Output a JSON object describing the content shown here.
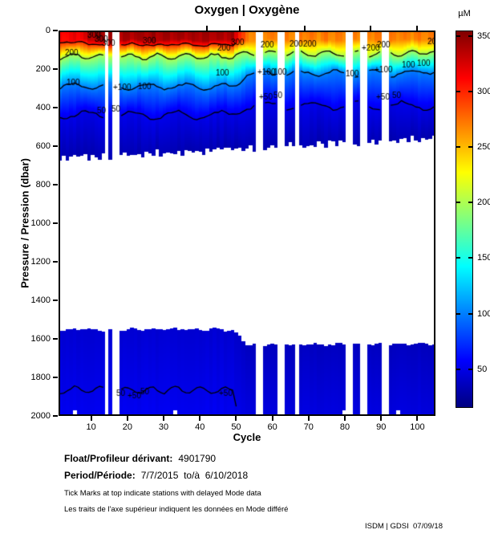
{
  "figure": {
    "title": "Oxygen | Oxygène"
  },
  "footer": {
    "float_label": "Float/Profileur dérivant:",
    "float_value": "4901790",
    "period_label": "Period/Période:",
    "period_value": "7/7/2015  to/à  6/10/2018",
    "note_en": "Tick Marks at top indicate stations with delayed Mode data",
    "note_fr": "Les traits de l'axe supérieur indiquent les données en Mode différé",
    "credit": "ISDM | GDSI  07/09/18"
  },
  "chart_data": {
    "type": "heatmap",
    "title": "Oxygen | Oxygène",
    "xlabel": "Cycle",
    "ylabel": "Pressure / Pression (dbar)",
    "x_range": [
      1,
      105
    ],
    "x_ticks": [
      10,
      20,
      30,
      40,
      50,
      60,
      70,
      80,
      90,
      100
    ],
    "y_range": [
      0,
      2000
    ],
    "y_ticks": [
      0,
      200,
      400,
      600,
      800,
      1000,
      1200,
      1400,
      1600,
      1800,
      2000
    ],
    "grid": false,
    "colorbar": {
      "label": "µM",
      "min": 15,
      "max": 355,
      "ticks": [
        50,
        100,
        150,
        200,
        250,
        300,
        350
      ],
      "colormap": "jet"
    },
    "contour_levels": [
      50,
      100,
      200,
      300
    ],
    "missing_cycles": [
      14,
      16,
      17,
      56,
      57,
      62,
      63,
      67,
      81,
      82,
      85,
      86,
      91,
      92
    ],
    "delayed_mode_tick_cycles": [
      42,
      51,
      69,
      87,
      100
    ],
    "bottom_notch_cycles": [
      5,
      33,
      80,
      95
    ],
    "field_model": {
      "surface_um": {
        "cycles_1_8": 312,
        "cycles_9_50": 343,
        "cycles_51_plus": 272
      },
      "mixed_layer_dbar": 42,
      "contour_depth_dbar": {
        "c200": {
          "left": 128,
          "right": 112
        },
        "c100": {
          "left": 285,
          "right": 215
        },
        "c50_upper": {
          "left": 435,
          "right": 385
        },
        "c50_deep_left": 1876
      },
      "upper_block_bottom_dbar": {
        "left": 662,
        "right": 556
      },
      "deep_block_top_dbar": {
        "left": 1556,
        "right": 1634
      },
      "deep_value_um": {
        "left_top": 42.5,
        "right_top": 36.5,
        "gain_to_bottom": 10.5
      },
      "upper_block_floor_um": 32,
      "transition_cycles": [
        49,
        53
      ]
    },
    "contour_labels": [
      {
        "t": "300",
        "x": 34,
        "y": 4
      },
      {
        "t": "300",
        "x": 43,
        "y": 9
      },
      {
        "t": "300",
        "x": 52,
        "y": 14
      },
      {
        "t": "300",
        "x": 103,
        "y": 11
      },
      {
        "t": "300",
        "x": 213,
        "y": 13
      },
      {
        "t": "200",
        "x": 6,
        "y": 26
      },
      {
        "t": "200",
        "x": 196,
        "y": 20
      },
      {
        "t": "200",
        "x": 250,
        "y": 16
      },
      {
        "t": "200",
        "x": 286,
        "y": 15
      },
      {
        "t": "200",
        "x": 303,
        "y": 15
      },
      {
        "t": "+200",
        "x": 376,
        "y": 20
      },
      {
        "t": "200",
        "x": 395,
        "y": 16
      },
      {
        "t": "200",
        "x": 458,
        "y": 12
      },
      {
        "t": "100",
        "x": 8,
        "y": 63
      },
      {
        "t": "+100",
        "x": 66,
        "y": 69
      },
      {
        "t": "100",
        "x": 97,
        "y": 68
      },
      {
        "t": "100",
        "x": 194,
        "y": 51
      },
      {
        "t": "+100",
        "x": 246,
        "y": 50
      },
      {
        "t": "100",
        "x": 266,
        "y": 50
      },
      {
        "t": "100",
        "x": 356,
        "y": 52
      },
      {
        "t": "+100",
        "x": 392,
        "y": 47
      },
      {
        "t": "100",
        "x": 426,
        "y": 41
      },
      {
        "t": "100",
        "x": 445,
        "y": 39
      },
      {
        "t": "50",
        "x": 46,
        "y": 98
      },
      {
        "t": "50",
        "x": 64,
        "y": 96
      },
      {
        "t": "+50",
        "x": 248,
        "y": 81
      },
      {
        "t": "50",
        "x": 266,
        "y": 79
      },
      {
        "t": "+50",
        "x": 394,
        "y": 81
      },
      {
        "t": "50",
        "x": 414,
        "y": 79
      },
      {
        "t": "50",
        "x": 70,
        "y": 450
      },
      {
        "t": "+50",
        "x": 84,
        "y": 453
      },
      {
        "t": "50",
        "x": 100,
        "y": 448
      },
      {
        "t": "+50",
        "x": 198,
        "y": 450
      }
    ]
  }
}
